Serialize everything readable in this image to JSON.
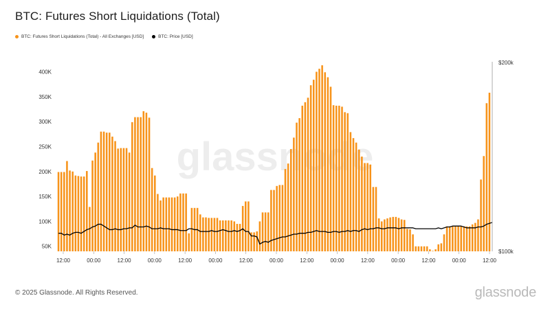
{
  "header": {
    "title": "BTC: Futures Short Liquidations (Total)"
  },
  "legend": [
    {
      "label": "BTC: Futures Short Liquidations (Total) - All Exchanges [USD]",
      "color": "#f7931a"
    },
    {
      "label": "BTC: Price [USD]",
      "color": "#000000"
    }
  ],
  "footer": {
    "copyright": "© 2025 Glassnode. All Rights Reserved.",
    "brand": "glassnode"
  },
  "watermark": "glassnode",
  "chart_data": {
    "type": "bar",
    "title": "BTC: Futures Short Liquidations (Total)",
    "xlabel": "",
    "ylabel": "",
    "ylim": [
      40000,
      420000
    ],
    "y_ticks": [
      50000,
      100000,
      150000,
      200000,
      250000,
      300000,
      350000,
      400000
    ],
    "y_tick_labels": [
      "50K",
      "100K",
      "150K",
      "200K",
      "250K",
      "300K",
      "350K",
      "400K"
    ],
    "y2_tick_labels": [
      "$200k",
      "$100k"
    ],
    "x_tick_labels": [
      "12:00",
      "00:00",
      "12:00",
      "00:00",
      "12:00",
      "00:00",
      "12:00",
      "00:00",
      "12:00",
      "00:00",
      "12:00",
      "00:00",
      "12:00",
      "00:00",
      "12:00"
    ],
    "series": [
      {
        "name": "BTC: Futures Short Liquidations (Total) - All Exchanges [USD]",
        "color": "#f7931a",
        "values": [
          199000,
          199000,
          199000,
          221000,
          202000,
          200000,
          192000,
          191000,
          190000,
          190000,
          201000,
          129000,
          222000,
          238000,
          258000,
          280000,
          280000,
          278000,
          278000,
          270000,
          261000,
          246000,
          247000,
          247000,
          247000,
          238000,
          299000,
          309000,
          309000,
          309000,
          321000,
          318000,
          308000,
          207000,
          192000,
          155000,
          142000,
          148000,
          148000,
          148000,
          148000,
          148000,
          150000,
          156000,
          156000,
          156000,
          76000,
          127000,
          127000,
          127000,
          114000,
          108000,
          108000,
          107000,
          107000,
          107000,
          107000,
          102000,
          102000,
          102000,
          102000,
          102000,
          100000,
          95000,
          95000,
          131000,
          140000,
          140000,
          78000,
          78000,
          80000,
          100000,
          118000,
          118000,
          118000,
          163000,
          163000,
          171000,
          173000,
          173000,
          205000,
          216000,
          245000,
          268000,
          298000,
          307000,
          332000,
          339000,
          348000,
          373000,
          384000,
          400000,
          406000,
          413000,
          399000,
          389000,
          370000,
          333000,
          332000,
          332000,
          330000,
          319000,
          317000,
          279000,
          267000,
          258000,
          244000,
          230000,
          217000,
          217000,
          214000,
          169000,
          169000,
          106000,
          100000,
          104000,
          106000,
          108000,
          109000,
          109000,
          107000,
          104000,
          103000,
          85000,
          84000,
          74000,
          50000,
          50000,
          50000,
          50000,
          50000,
          44000,
          41000,
          44000,
          54000,
          56000,
          74000,
          90000,
          90000,
          90000,
          90000,
          90000,
          90000,
          90000,
          90000,
          90000,
          94000,
          97000,
          104000,
          184000,
          231000,
          337000,
          358000
        ]
      },
      {
        "name": "BTC: Price [USD]",
        "color": "#000000",
        "y_axis": "right",
        "ylim": [
          98000,
          203000
        ],
        "values": [
          108000,
          108000,
          107000,
          107500,
          107000,
          108000,
          108500,
          108500,
          108000,
          109000,
          110000,
          110500,
          111500,
          112000,
          113000,
          113000,
          112000,
          111000,
          110000,
          110000,
          110500,
          110000,
          110000,
          110500,
          110500,
          111000,
          111000,
          112500,
          111500,
          111500,
          111500,
          112000,
          111500,
          110500,
          110500,
          110500,
          111000,
          110500,
          110500,
          110500,
          110000,
          110000,
          110000,
          109500,
          109500,
          109500,
          110500,
          110500,
          110000,
          110000,
          109000,
          109000,
          109000,
          109000,
          109500,
          109000,
          109000,
          109500,
          110000,
          109500,
          109000,
          109000,
          109500,
          109000,
          109500,
          110500,
          109000,
          109000,
          106500,
          106500,
          106000,
          102000,
          103000,
          103500,
          103000,
          104000,
          104500,
          105000,
          105500,
          106000,
          106000,
          106500,
          107000,
          107500,
          107500,
          108000,
          108000,
          108000,
          108500,
          108500,
          109000,
          109500,
          109000,
          109000,
          109000,
          108500,
          108500,
          109000,
          109000,
          108500,
          109000,
          109000,
          109500,
          109000,
          109500,
          109500,
          109000,
          110000,
          110500,
          110000,
          110500,
          110500,
          111000,
          111000,
          110500,
          110500,
          111000,
          111000,
          111000,
          111000,
          110500,
          111000,
          111000,
          111000,
          111000,
          111000,
          110500,
          110500,
          110500,
          110500,
          110500,
          110500,
          110500,
          110500,
          111000,
          110500,
          111000,
          111500,
          111500,
          112000,
          112000,
          112000,
          112000,
          111500,
          111000,
          111000,
          111000,
          111000,
          111500,
          111500,
          112000,
          113000,
          113500,
          114000
        ]
      }
    ]
  }
}
